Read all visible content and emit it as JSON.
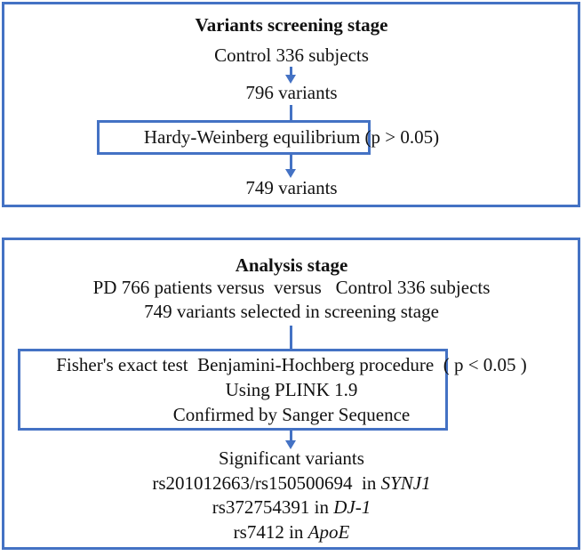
{
  "colors": {
    "border": "#4472c4",
    "arrow": "#4472c4"
  },
  "screening": {
    "title": "Variants screening stage",
    "input": "Control 336 subjects",
    "variants_initial": "796 variants",
    "filter": "Hardy-Weinberg equilibrium (p > 0.05)",
    "variants_final": "749 variants"
  },
  "analysis": {
    "title": "Analysis stage",
    "comparison": "PD 766 patients versus  versus   Control 336 subjects",
    "selection": "749 variants selected in screening stage",
    "methods": [
      "Fisher's exact test  Benjamini-Hochberg procedure  ( p < 0.05 )",
      "Using PLINK 1.9",
      "Confirmed by Sanger Sequence"
    ],
    "results_title": "Significant variants",
    "results": [
      {
        "variant": "rs201012663/rs150500694  in ",
        "gene": "SYNJ1"
      },
      {
        "variant": "rs372754391 in ",
        "gene": "DJ-1"
      },
      {
        "variant": "rs7412 in ",
        "gene": "ApoE"
      }
    ]
  }
}
